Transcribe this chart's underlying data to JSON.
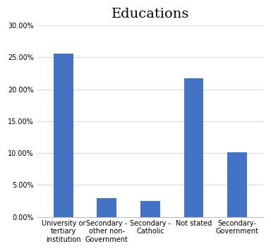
{
  "title": "Educations",
  "categories": [
    "University or\ntertiary\ninstitution",
    "Secondary -\nother non-\nGovernment",
    "Secondary -\nCatholic",
    "Not stated",
    "Secondary-\nGovernment"
  ],
  "values": [
    0.256,
    0.029,
    0.025,
    0.217,
    0.101
  ],
  "bar_color": "#4472c4",
  "ylim": [
    0,
    0.3
  ],
  "yticks": [
    0.0,
    0.05,
    0.1,
    0.15,
    0.2,
    0.25,
    0.3
  ],
  "title_fontsize": 14,
  "tick_fontsize": 7,
  "background_color": "#ffffff",
  "plot_bg_color": "#ffffff",
  "grid_color": "#d9d9d9",
  "spine_color": "#c0c0c0",
  "bar_width": 0.45
}
